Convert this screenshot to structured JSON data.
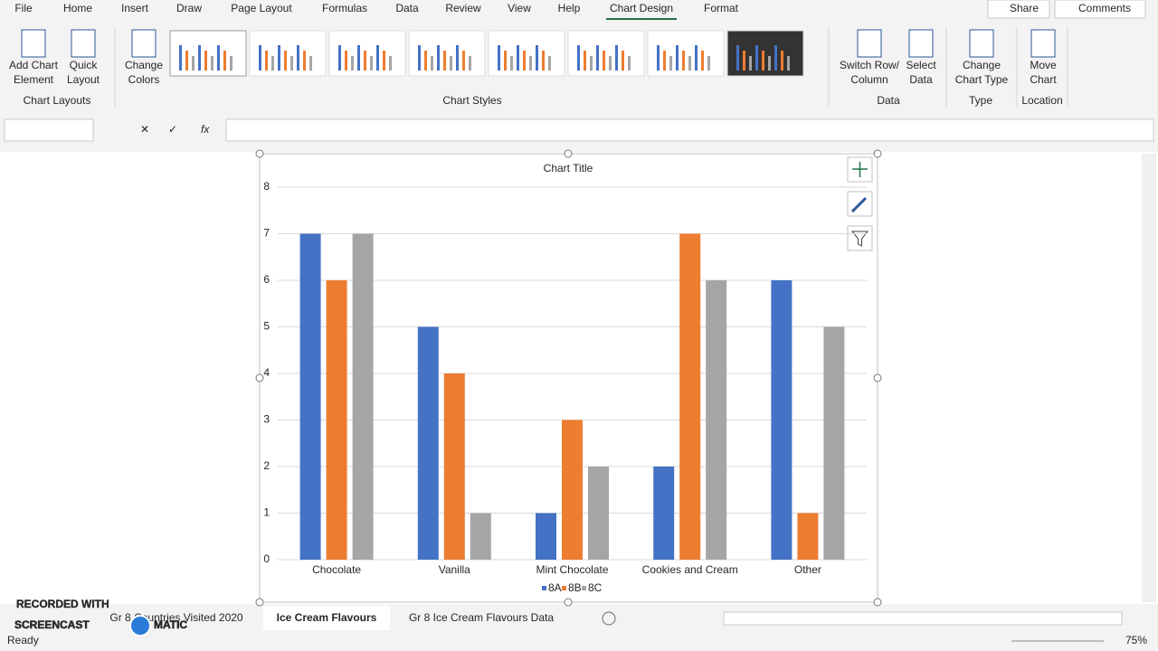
{
  "ribbon": {
    "tabs": [
      "File",
      "Home",
      "Insert",
      "Draw",
      "Page Layout",
      "Formulas",
      "Data",
      "Review",
      "View",
      "Help",
      "Chart Design",
      "Format"
    ],
    "share": "Share",
    "comments": "Comments",
    "buttons": [
      {
        "lines": [
          "Add Chart",
          "Element"
        ]
      },
      {
        "lines": [
          "Quick",
          "Layout"
        ]
      },
      {
        "lines": [
          "Change",
          "Colors"
        ]
      },
      {
        "lines": [
          "Switch Row/",
          "Column"
        ]
      },
      {
        "lines": [
          "Select",
          "Data"
        ]
      },
      {
        "lines": [
          "Change",
          "Chart Type"
        ]
      },
      {
        "lines": [
          "Move",
          "Chart"
        ]
      }
    ],
    "groups": [
      "Chart Layouts",
      "Chart Styles",
      "Data",
      "Type",
      "Location"
    ]
  },
  "formula_bar": {
    "function_icon": "fx"
  },
  "chart_data": {
    "type": "bar",
    "title": "Chart Title",
    "categories": [
      "Chocolate",
      "Vanilla",
      "Mint Chocolate",
      "Cookies and Cream",
      "Other"
    ],
    "series": [
      {
        "name": "8A",
        "color": "#4472c4",
        "values": [
          7,
          5,
          1,
          2,
          6
        ]
      },
      {
        "name": "8B",
        "color": "#ed7d31",
        "values": [
          6,
          4,
          3,
          7,
          1
        ]
      },
      {
        "name": "8C",
        "color": "#a5a5a5",
        "values": [
          7,
          1,
          2,
          6,
          5
        ]
      }
    ],
    "ylim": [
      0,
      8
    ],
    "yticks": [
      0,
      1,
      2,
      3,
      4,
      5,
      6,
      7,
      8
    ],
    "grid": true,
    "legend": "bottom"
  },
  "sheet_tabs": [
    "Gr 8 Countries Visited 2020",
    "Ice Cream Flavours",
    "Gr 8 Ice Cream Flavours Data"
  ],
  "status": "Ready",
  "zoom": "75%",
  "watermark": [
    "RECORDED WITH",
    "SCREENCAST",
    "MATIC"
  ]
}
